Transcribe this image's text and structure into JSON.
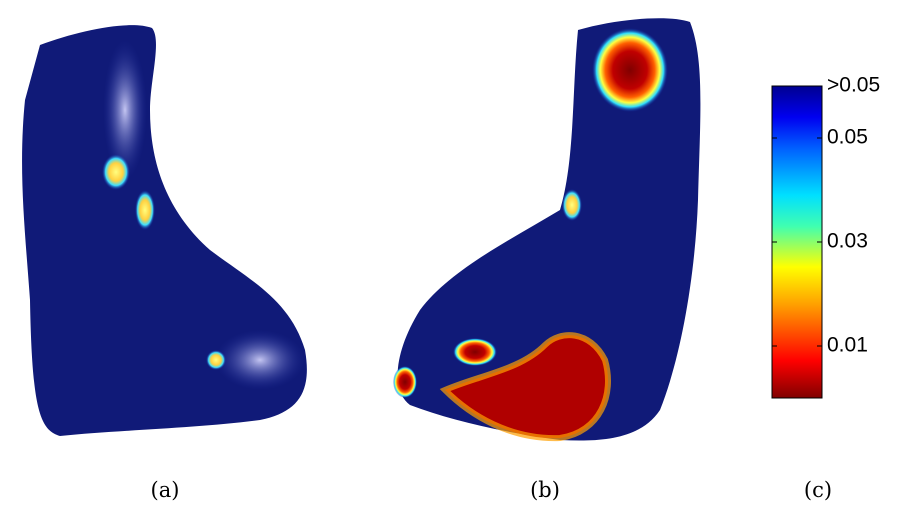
{
  "panels": [
    {
      "label": "(a)"
    },
    {
      "label": "(b)"
    },
    {
      "label": "(c)"
    }
  ],
  "colorbar": {
    "lim": [
      0,
      0.06
    ],
    "ticks": [
      {
        "value": 0.06,
        "label": ">0.05"
      },
      0.05,
      0.03,
      0.01
    ]
  }
}
